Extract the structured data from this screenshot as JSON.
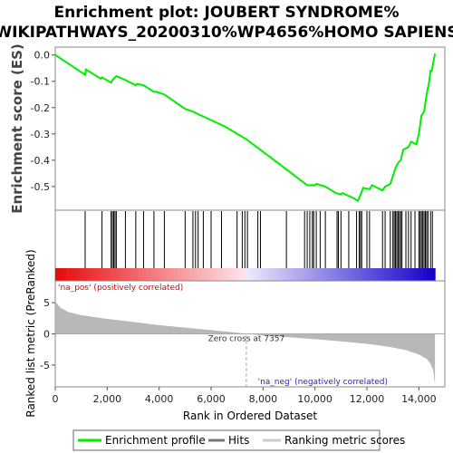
{
  "chart_data": {
    "type": "line",
    "title_lines": [
      "Enrichment plot: JOUBERT SYNDROME%",
      "WIKIPATHWAYS_20200310%WP4656%HOMO SAPIENS"
    ],
    "top_panel": {
      "ylabel": "Enrichment score (ES)",
      "ylim": [
        -0.59,
        0.03
      ],
      "yticks": [
        0.0,
        -0.1,
        -0.2,
        -0.3,
        -0.4,
        -0.5
      ],
      "ytick_labels": [
        "0.0",
        "-0.1",
        "-0.2",
        "-0.3",
        "-0.4",
        "-0.5"
      ],
      "series": [
        {
          "name": "Enrichment profile",
          "color": "#00ee00",
          "points": [
            [
              0,
              0.0
            ],
            [
              1150,
              -0.075
            ],
            [
              1180,
              -0.055
            ],
            [
              1750,
              -0.09
            ],
            [
              1800,
              -0.085
            ],
            [
              2150,
              -0.105
            ],
            [
              2200,
              -0.095
            ],
            [
              2250,
              -0.09
            ],
            [
              2300,
              -0.085
            ],
            [
              2350,
              -0.08
            ],
            [
              2700,
              -0.095
            ],
            [
              3100,
              -0.115
            ],
            [
              3150,
              -0.11
            ],
            [
              3400,
              -0.115
            ],
            [
              3800,
              -0.14
            ],
            [
              3900,
              -0.14
            ],
            [
              4200,
              -0.15
            ],
            [
              5000,
              -0.205
            ],
            [
              5300,
              -0.215
            ],
            [
              5500,
              -0.225
            ],
            [
              6500,
              -0.27
            ],
            [
              7350,
              -0.32
            ],
            [
              8500,
              -0.405
            ],
            [
              9500,
              -0.48
            ],
            [
              9700,
              -0.495
            ],
            [
              10000,
              -0.495
            ],
            [
              10050,
              -0.49
            ],
            [
              10400,
              -0.5
            ],
            [
              10800,
              -0.525
            ],
            [
              11000,
              -0.53
            ],
            [
              11050,
              -0.525
            ],
            [
              11500,
              -0.545
            ],
            [
              11650,
              -0.555
            ],
            [
              11800,
              -0.52
            ],
            [
              11850,
              -0.505
            ],
            [
              12100,
              -0.51
            ],
            [
              12200,
              -0.495
            ],
            [
              12600,
              -0.515
            ],
            [
              12700,
              -0.5
            ],
            [
              12900,
              -0.49
            ],
            [
              13000,
              -0.46
            ],
            [
              13100,
              -0.43
            ],
            [
              13200,
              -0.41
            ],
            [
              13300,
              -0.4
            ],
            [
              13400,
              -0.36
            ],
            [
              13600,
              -0.35
            ],
            [
              13700,
              -0.33
            ],
            [
              13900,
              -0.34
            ],
            [
              14000,
              -0.3
            ],
            [
              14100,
              -0.23
            ],
            [
              14200,
              -0.215
            ],
            [
              14300,
              -0.15
            ],
            [
              14400,
              -0.1
            ],
            [
              14450,
              -0.06
            ],
            [
              14500,
              -0.06
            ],
            [
              14550,
              -0.03
            ],
            [
              14620,
              0.005
            ]
          ]
        }
      ]
    },
    "hits_panel": {
      "positions": [
        1150,
        1800,
        2150,
        2200,
        2250,
        2300,
        2350,
        2700,
        3100,
        3400,
        3800,
        4200,
        5000,
        5300,
        5400,
        5500,
        5700,
        6000,
        6400,
        7000,
        7200,
        7300,
        7400,
        7800,
        7900,
        8900,
        9600,
        9700,
        9800,
        9900,
        9950,
        10050,
        10200,
        10400,
        10850,
        10900,
        11000,
        11300,
        11600,
        11700,
        11750,
        11800,
        12000,
        12100,
        12600,
        12700,
        12900,
        13000,
        13050,
        13100,
        13150,
        13200,
        13250,
        13300,
        13350,
        13500,
        13600,
        13700,
        13850,
        14000,
        14050,
        14100,
        14150,
        14200,
        14250,
        14300,
        14350,
        14450,
        14520
      ]
    },
    "bottom_panel": {
      "ylabel": "Ranked list metric (PreRanked)",
      "xlabel": "Rank in Ordered Dataset",
      "ylim": [
        -8.5,
        8.5
      ],
      "yticks": [
        5,
        0,
        -5
      ],
      "ytick_labels": [
        "5",
        "0",
        "-5"
      ],
      "metric_curve": [
        [
          0,
          5.2
        ],
        [
          200,
          4.2
        ],
        [
          500,
          3.5
        ],
        [
          1000,
          3.0
        ],
        [
          2000,
          2.4
        ],
        [
          3000,
          1.9
        ],
        [
          4000,
          1.4
        ],
        [
          5000,
          1.0
        ],
        [
          6000,
          0.6
        ],
        [
          7000,
          0.2
        ],
        [
          7357,
          0.0
        ],
        [
          8000,
          -0.25
        ],
        [
          9000,
          -0.55
        ],
        [
          10000,
          -0.85
        ],
        [
          11000,
          -1.2
        ],
        [
          12000,
          -1.6
        ],
        [
          12500,
          -1.85
        ],
        [
          13000,
          -2.2
        ],
        [
          13500,
          -2.6
        ],
        [
          14000,
          -3.3
        ],
        [
          14300,
          -4.0
        ],
        [
          14450,
          -4.8
        ],
        [
          14550,
          -5.8
        ],
        [
          14620,
          -8.2
        ]
      ],
      "zero_cross_label": "Zero cross at 7357",
      "zero_cross_rank": 7357,
      "na_pos_label": "'na_pos' (positively correlated)",
      "na_neg_label": "'na_neg' (negatively correlated)"
    },
    "x_axis": {
      "xlim": [
        0,
        15000
      ],
      "xticks": [
        0,
        2000,
        4000,
        6000,
        8000,
        10000,
        12000,
        14000
      ],
      "xtick_labels": [
        "0",
        "2,000",
        "4,000",
        "6,000",
        "8,000",
        "10,000",
        "12,000",
        "14,000"
      ],
      "n_ranks": 14620
    },
    "legend": {
      "items": [
        {
          "label": "Enrichment profile",
          "color": "#00ee00"
        },
        {
          "label": "Hits",
          "color": "#777777"
        },
        {
          "label": "Ranking metric scores",
          "color": "#cccccc"
        }
      ],
      "placement": "bottom-center"
    },
    "colors": {
      "es_line": "#00ee00",
      "hit_line": "#000000",
      "metric_fill": "#b8b8b8",
      "na_pos_text": "#dd0000",
      "na_neg_text": "#2222cc",
      "zero_line": "#aaaaaa"
    }
  }
}
